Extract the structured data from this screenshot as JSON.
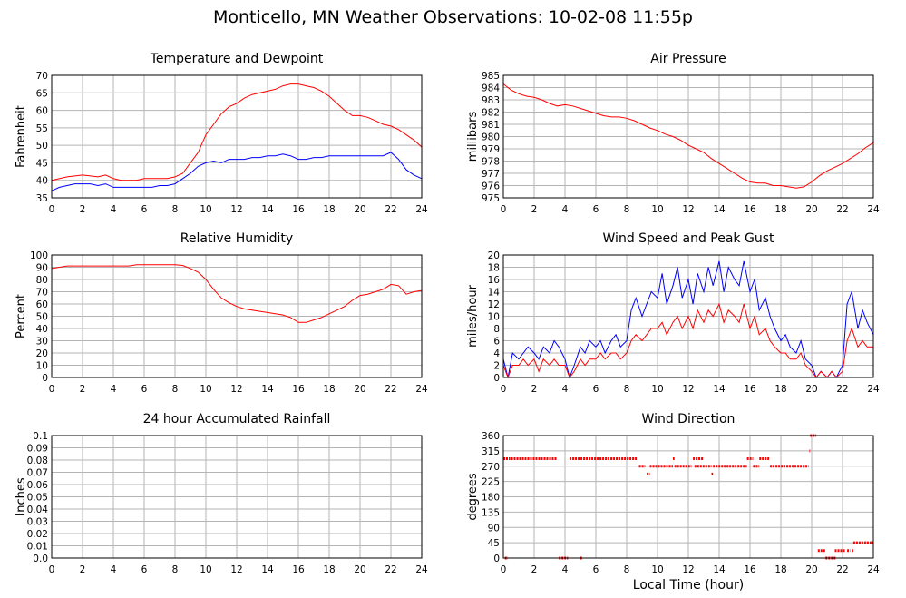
{
  "page": {
    "title": "Monticello, MN Weather Observations: 10-02-08 11:55p",
    "x_axis_label": "Local Time (hour)"
  },
  "colors": {
    "primary": "#ff0000",
    "secondary": "#0000ff",
    "grid": "#b4b4b4",
    "frame": "#000000"
  },
  "chart_data": [
    {
      "id": "temp",
      "type": "line",
      "title": "Temperature and Dewpoint",
      "ylabel": "Fahrenheit",
      "xlim": [
        0,
        24
      ],
      "ylim": [
        35,
        70
      ],
      "xticks": [
        0,
        2,
        4,
        6,
        8,
        10,
        12,
        14,
        16,
        18,
        20,
        22,
        24
      ],
      "yticks": [
        35,
        40,
        45,
        50,
        55,
        60,
        65,
        70
      ],
      "series": [
        {
          "color": "#ff0000",
          "x": [
            0,
            1,
            2,
            3,
            3.5,
            4,
            4.5,
            5,
            5.5,
            6,
            6.5,
            7,
            7.5,
            8,
            8.5,
            9,
            9.5,
            10,
            10.5,
            11,
            11.5,
            12,
            12.5,
            13,
            13.5,
            14,
            14.5,
            15,
            15.5,
            16,
            16.5,
            17,
            17.5,
            18,
            18.5,
            19,
            19.5,
            20,
            20.5,
            21,
            21.5,
            22,
            22.5,
            23,
            23.5,
            24
          ],
          "y": [
            40,
            41,
            41.5,
            41,
            41.5,
            40.5,
            40,
            40,
            40,
            40.5,
            40.5,
            40.5,
            40.5,
            41,
            42,
            45,
            48,
            53,
            56,
            59,
            61,
            62,
            63.5,
            64.5,
            65,
            65.5,
            66,
            67,
            67.5,
            67.5,
            67,
            66.5,
            65.5,
            64,
            62,
            60,
            58.5,
            58.5,
            58,
            57,
            56,
            55.5,
            54.5,
            53,
            51.5,
            49.5
          ]
        },
        {
          "color": "#0000ff",
          "x": [
            0,
            0.5,
            1,
            1.5,
            2,
            2.5,
            3,
            3.5,
            4,
            4.5,
            5,
            5.5,
            6,
            6.5,
            7,
            7.5,
            8,
            8.5,
            9,
            9.5,
            10,
            10.5,
            11,
            11.5,
            12,
            12.5,
            13,
            13.5,
            14,
            14.5,
            15,
            15.5,
            16,
            16.5,
            17,
            17.5,
            18,
            18.5,
            19,
            19.5,
            20,
            20.5,
            21,
            21.5,
            22,
            22.5,
            23,
            23.5,
            24
          ],
          "y": [
            37,
            38,
            38.5,
            39,
            39,
            39,
            38.5,
            39,
            38,
            38,
            38,
            38,
            38,
            38,
            38.5,
            38.5,
            39,
            40.5,
            42,
            44,
            45,
            45.5,
            45,
            46,
            46,
            46,
            46.5,
            46.5,
            47,
            47,
            47.5,
            47,
            46,
            46,
            46.5,
            46.5,
            47,
            47,
            47,
            47,
            47,
            47,
            47,
            47,
            48,
            46,
            43,
            41.5,
            40.5
          ]
        }
      ]
    },
    {
      "id": "pressure",
      "type": "line",
      "title": "Air Pressure",
      "ylabel": "millibars",
      "xlim": [
        0,
        24
      ],
      "ylim": [
        975,
        985
      ],
      "xticks": [
        0,
        2,
        4,
        6,
        8,
        10,
        12,
        14,
        16,
        18,
        20,
        22,
        24
      ],
      "yticks": [
        975,
        976,
        977,
        978,
        979,
        980,
        981,
        982,
        983,
        984,
        985
      ],
      "series": [
        {
          "color": "#ff0000",
          "x": [
            0,
            0.5,
            1,
            1.5,
            2,
            2.5,
            3,
            3.5,
            4,
            4.5,
            5,
            5.5,
            6,
            6.5,
            7,
            7.5,
            8,
            8.5,
            9,
            9.5,
            10,
            10.5,
            11,
            11.5,
            12,
            12.5,
            13,
            13.5,
            14,
            14.5,
            15,
            15.5,
            16,
            16.5,
            17,
            17.5,
            18,
            18.5,
            19,
            19.5,
            20,
            20.5,
            21,
            21.5,
            22,
            22.5,
            23,
            23.5,
            24
          ],
          "y": [
            984.3,
            983.8,
            983.5,
            983.3,
            983.2,
            983,
            982.7,
            982.5,
            982.6,
            982.5,
            982.3,
            982.1,
            981.9,
            981.7,
            981.6,
            981.6,
            981.5,
            981.3,
            981,
            980.7,
            980.5,
            980.2,
            980,
            979.7,
            979.3,
            979,
            978.7,
            978.2,
            977.8,
            977.4,
            977,
            976.6,
            976.3,
            976.2,
            976.2,
            976,
            976,
            975.9,
            975.8,
            975.9,
            976.3,
            976.8,
            977.2,
            977.5,
            977.8,
            978.2,
            978.6,
            979.1,
            979.5
          ]
        }
      ]
    },
    {
      "id": "humidity",
      "type": "line",
      "title": "Relative Humidity",
      "ylabel": "Percent",
      "xlim": [
        0,
        24
      ],
      "ylim": [
        0,
        100
      ],
      "xticks": [
        0,
        2,
        4,
        6,
        8,
        10,
        12,
        14,
        16,
        18,
        20,
        22,
        24
      ],
      "yticks": [
        0,
        10,
        20,
        30,
        40,
        50,
        60,
        70,
        80,
        90,
        100
      ],
      "series": [
        {
          "color": "#ff0000",
          "x": [
            0,
            0.5,
            1,
            2,
            3,
            4,
            5,
            5.5,
            6,
            7,
            8,
            8.5,
            9,
            9.5,
            10,
            10.5,
            11,
            11.5,
            12,
            12.5,
            13,
            13.5,
            14,
            14.5,
            15,
            15.5,
            16,
            16.5,
            17,
            17.5,
            18,
            18.5,
            19,
            19.5,
            20,
            20.5,
            21,
            21.5,
            22,
            22.5,
            23,
            23.5,
            24
          ],
          "y": [
            89,
            90,
            91,
            91,
            91,
            91,
            91,
            92,
            92,
            92,
            92,
            91.5,
            89,
            86,
            80,
            72,
            65,
            61,
            58,
            56,
            55,
            54,
            53,
            52,
            51,
            49,
            45,
            45,
            47,
            49,
            52,
            55,
            58,
            63,
            67,
            68,
            70,
            72,
            76,
            75,
            68,
            70,
            71
          ]
        }
      ]
    },
    {
      "id": "wind",
      "type": "line",
      "title": "Wind Speed and Peak Gust",
      "ylabel": "miles/hour",
      "xlim": [
        0,
        24
      ],
      "ylim": [
        0,
        20
      ],
      "xticks": [
        0,
        2,
        4,
        6,
        8,
        10,
        12,
        14,
        16,
        18,
        20,
        22,
        24
      ],
      "yticks": [
        0,
        2,
        4,
        6,
        8,
        10,
        12,
        14,
        16,
        18,
        20
      ],
      "series": [
        {
          "color": "#0000ff",
          "x": [
            0,
            0.3,
            0.6,
            1,
            1.3,
            1.6,
            2,
            2.3,
            2.6,
            3,
            3.3,
            3.6,
            4,
            4.3,
            4.6,
            5,
            5.3,
            5.6,
            6,
            6.3,
            6.6,
            7,
            7.3,
            7.6,
            8,
            8.3,
            8.6,
            9,
            9.3,
            9.6,
            10,
            10.3,
            10.6,
            11,
            11.3,
            11.6,
            12,
            12.3,
            12.6,
            13,
            13.3,
            13.6,
            14,
            14.3,
            14.6,
            15,
            15.3,
            15.6,
            16,
            16.3,
            16.6,
            17,
            17.3,
            17.6,
            18,
            18.3,
            18.6,
            19,
            19.3,
            19.6,
            20,
            20.3,
            20.6,
            21,
            21.3,
            21.6,
            22,
            22.3,
            22.6,
            23,
            23.3,
            23.6,
            24
          ],
          "y": [
            3,
            0,
            4,
            3,
            4,
            5,
            4,
            3,
            5,
            4,
            6,
            5,
            3,
            0,
            2,
            5,
            4,
            6,
            5,
            6,
            4,
            6,
            7,
            5,
            6,
            11,
            13,
            10,
            12,
            14,
            13,
            17,
            12,
            15,
            18,
            13,
            16,
            12,
            17,
            14,
            18,
            15,
            19,
            14,
            18,
            16,
            15,
            19,
            14,
            16,
            11,
            13,
            10,
            8,
            6,
            7,
            5,
            4,
            6,
            3,
            2,
            0,
            1,
            0,
            1,
            0,
            2,
            12,
            14,
            8,
            11,
            9,
            7
          ]
        },
        {
          "color": "#ff0000",
          "x": [
            0,
            0.3,
            0.6,
            1,
            1.3,
            1.6,
            2,
            2.3,
            2.6,
            3,
            3.3,
            3.6,
            4,
            4.3,
            4.6,
            5,
            5.3,
            5.6,
            6,
            6.3,
            6.6,
            7,
            7.3,
            7.6,
            8,
            8.3,
            8.6,
            9,
            9.3,
            9.6,
            10,
            10.3,
            10.6,
            11,
            11.3,
            11.6,
            12,
            12.3,
            12.6,
            13,
            13.3,
            13.6,
            14,
            14.3,
            14.6,
            15,
            15.3,
            15.6,
            16,
            16.3,
            16.6,
            17,
            17.3,
            17.6,
            18,
            18.3,
            18.6,
            19,
            19.3,
            19.6,
            20,
            20.3,
            20.6,
            21,
            21.3,
            21.6,
            22,
            22.3,
            22.6,
            23,
            23.3,
            23.6,
            24
          ],
          "y": [
            2,
            0,
            2,
            2,
            3,
            2,
            3,
            1,
            3,
            2,
            3,
            2,
            2,
            0,
            1,
            3,
            2,
            3,
            3,
            4,
            3,
            4,
            4,
            3,
            4,
            6,
            7,
            6,
            7,
            8,
            8,
            9,
            7,
            9,
            10,
            8,
            10,
            8,
            11,
            9,
            11,
            10,
            12,
            9,
            11,
            10,
            9,
            12,
            8,
            10,
            7,
            8,
            6,
            5,
            4,
            4,
            3,
            3,
            4,
            2,
            1,
            0,
            1,
            0,
            1,
            0,
            1,
            6,
            8,
            5,
            6,
            5,
            5
          ]
        }
      ]
    },
    {
      "id": "rain",
      "type": "line",
      "title": "24 hour Accumulated Rainfall",
      "ylabel": "Inches",
      "xlim": [
        0,
        24
      ],
      "ylim": [
        0,
        0.1
      ],
      "xticks": [
        0,
        2,
        4,
        6,
        8,
        10,
        12,
        14,
        16,
        18,
        20,
        22,
        24
      ],
      "yticks": [
        "0.0",
        "0.01",
        "0.02",
        "0.03",
        "0.04",
        "0.05",
        "0.06",
        "0.07",
        "0.08",
        "0.09",
        "0.1"
      ],
      "series": [
        {
          "color": "#ff0000",
          "x": [
            0,
            24
          ],
          "y": [
            0,
            0
          ]
        }
      ]
    },
    {
      "id": "direction",
      "type": "scatter",
      "title": "Wind Direction",
      "ylabel": "degrees",
      "xlabel": "Local Time (hour)",
      "xlim": [
        0,
        24
      ],
      "ylim": [
        0,
        360
      ],
      "xticks": [
        0,
        2,
        4,
        6,
        8,
        10,
        12,
        14,
        16,
        18,
        20,
        22,
        24
      ],
      "yticks": [
        0,
        45,
        90,
        135,
        180,
        225,
        270,
        315,
        360
      ],
      "series": [
        {
          "color": "#ff0000",
          "segments": [
            [
              0.0,
              0.45,
              292
            ],
            [
              0.1,
              0.3,
              0
            ],
            [
              0.5,
              3.5,
              292
            ],
            [
              3.6,
              4.2,
              0
            ],
            [
              4.3,
              8.7,
              292
            ],
            [
              5.0,
              5.1,
              0
            ],
            [
              8.8,
              9.2,
              270
            ],
            [
              9.3,
              9.5,
              247
            ],
            [
              9.5,
              11.0,
              270
            ],
            [
              11.0,
              11.1,
              292
            ],
            [
              11.1,
              12.2,
              270
            ],
            [
              12.3,
              13.0,
              292
            ],
            [
              12.4,
              13.5,
              270
            ],
            [
              13.5,
              13.6,
              247
            ],
            [
              13.6,
              15.8,
              270
            ],
            [
              15.8,
              16.2,
              292
            ],
            [
              16.2,
              16.6,
              270
            ],
            [
              16.6,
              17.3,
              292
            ],
            [
              17.3,
              19.8,
              270
            ],
            [
              19.85,
              19.9,
              315
            ],
            [
              19.9,
              20.3,
              360
            ],
            [
              20.4,
              20.9,
              22
            ],
            [
              20.9,
              21.6,
              0
            ],
            [
              21.5,
              22.2,
              22
            ],
            [
              22.3,
              22.5,
              22
            ],
            [
              22.6,
              22.7,
              22
            ],
            [
              22.7,
              24.0,
              45
            ]
          ]
        }
      ]
    }
  ]
}
